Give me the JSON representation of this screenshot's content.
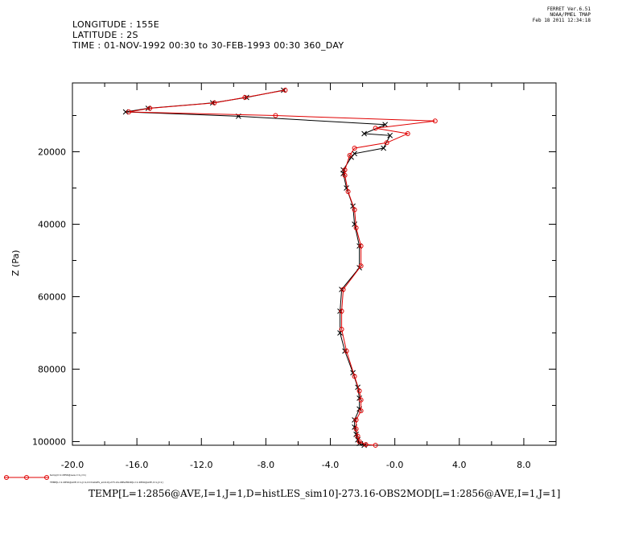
{
  "header": {
    "longitude": "LONGITUDE : 155E",
    "latitude": "LATITUDE : 2S",
    "time": "TIME : 01-NOV-1992 00:30 to 30-FEB-1993 00:30 360_DAY"
  },
  "stamp": {
    "line1": "FERRET  Ver.6.51",
    "line2": "NOAA/PMEL TMAP",
    "line3": "Feb 18 2011 12:34:18"
  },
  "bottom_label": "TEMP[L=1:2856@AVE,I=1,J=1,D=histLES_sim10]-273.16-OBS2MOD[L=1:2856@AVE,I=1,J=1]",
  "legend": {
    "line1": "temp(l=1:2856@ave,i=1,j=1)",
    "line2": "TEMP[L=1:2856@AVE,I=1,J=1,D=histLES_sim10]-273.16-OBS2MOD[L=1:2856@AVE,I=1,J=1]"
  },
  "colors": {
    "black_series": "#000000",
    "red_series": "#e00000"
  },
  "chart_data": {
    "type": "line",
    "xlabel": "",
    "ylabel": "Z (Pa)",
    "xlim": [
      -20,
      10
    ],
    "ylim": [
      101000,
      1000
    ],
    "y_inverted": true,
    "x_ticks": [
      -20,
      -16,
      -12,
      -8,
      -4,
      0,
      4,
      8
    ],
    "x_tick_labels": [
      "-20.0",
      "-16.0",
      "-12.0",
      "-8.0",
      "-4.0",
      "-0.0",
      "4.0",
      "8.0"
    ],
    "y_ticks": [
      20000,
      40000,
      60000,
      80000,
      100000
    ],
    "y_tick_labels": [
      "20000",
      "40000",
      "60000",
      "80000",
      "100000"
    ],
    "grid": false,
    "series": [
      {
        "marker": "x",
        "color": "#000000",
        "points": [
          [
            -6.9,
            3000
          ],
          [
            -9.2,
            5000
          ],
          [
            -11.3,
            6500
          ],
          [
            -15.3,
            8000
          ],
          [
            -16.7,
            9000
          ],
          [
            -9.7,
            10200
          ],
          [
            -0.6,
            12500
          ],
          [
            -1.9,
            15000
          ],
          [
            -0.3,
            15500
          ],
          [
            -0.7,
            19000
          ],
          [
            -2.5,
            20500
          ],
          [
            -2.7,
            21500
          ],
          [
            -3.2,
            25000
          ],
          [
            -3.2,
            26000
          ],
          [
            -3.0,
            30000
          ],
          [
            -2.6,
            35000
          ],
          [
            -2.5,
            40000
          ],
          [
            -2.2,
            46000
          ],
          [
            -2.2,
            52000
          ],
          [
            -3.3,
            58000
          ],
          [
            -3.4,
            64000
          ],
          [
            -3.4,
            70000
          ],
          [
            -3.1,
            75000
          ],
          [
            -2.6,
            81000
          ],
          [
            -2.3,
            85000
          ],
          [
            -2.2,
            88000
          ],
          [
            -2.2,
            91000
          ],
          [
            -2.5,
            94000
          ],
          [
            -2.5,
            96000
          ],
          [
            -2.4,
            98000
          ],
          [
            -2.3,
            99500
          ],
          [
            -2.2,
            100500
          ],
          [
            -1.9,
            101000
          ]
        ]
      },
      {
        "marker": "o",
        "color": "#e00000",
        "points": [
          [
            -6.8,
            3000
          ],
          [
            -9.3,
            5000
          ],
          [
            -11.2,
            6500
          ],
          [
            -15.2,
            8000
          ],
          [
            -16.5,
            9000
          ],
          [
            -7.4,
            10000
          ],
          [
            2.5,
            11500
          ],
          [
            -1.2,
            13500
          ],
          [
            0.8,
            15000
          ],
          [
            -0.5,
            17500
          ],
          [
            -2.5,
            19000
          ],
          [
            -2.8,
            21000
          ],
          [
            -3.1,
            25000
          ],
          [
            -3.1,
            26500
          ],
          [
            -2.9,
            31000
          ],
          [
            -2.5,
            36000
          ],
          [
            -2.4,
            41000
          ],
          [
            -2.1,
            46000
          ],
          [
            -2.1,
            51500
          ],
          [
            -3.2,
            58000
          ],
          [
            -3.3,
            64000
          ],
          [
            -3.3,
            69000
          ],
          [
            -3.0,
            75000
          ],
          [
            -2.5,
            82000
          ],
          [
            -2.2,
            86000
          ],
          [
            -2.1,
            88500
          ],
          [
            -2.1,
            91500
          ],
          [
            -2.4,
            94000
          ],
          [
            -2.4,
            96500
          ],
          [
            -2.3,
            98500
          ],
          [
            -2.2,
            100000
          ],
          [
            -1.8,
            100800
          ],
          [
            -1.2,
            101000
          ]
        ]
      }
    ]
  }
}
